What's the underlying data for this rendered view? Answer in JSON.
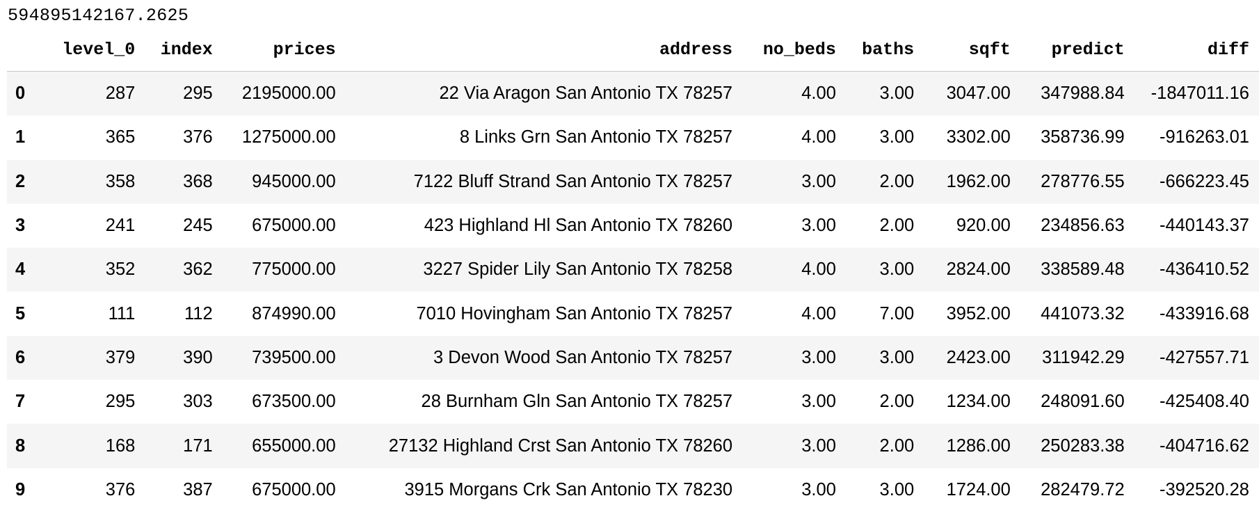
{
  "output_value": "594895142167.2625",
  "table": {
    "columns": [
      "",
      "level_0",
      "index",
      "prices",
      "address",
      "no_beds",
      "baths",
      "sqft",
      "predict",
      "diff"
    ],
    "rows": [
      [
        "0",
        "287",
        "295",
        "2195000.00",
        "22 Via Aragon San Antonio TX 78257",
        "4.00",
        "3.00",
        "3047.00",
        "347988.84",
        "-1847011.16"
      ],
      [
        "1",
        "365",
        "376",
        "1275000.00",
        "8 Links Grn San Antonio TX 78257",
        "4.00",
        "3.00",
        "3302.00",
        "358736.99",
        "-916263.01"
      ],
      [
        "2",
        "358",
        "368",
        "945000.00",
        "7122 Bluff Strand San Antonio TX 78257",
        "3.00",
        "2.00",
        "1962.00",
        "278776.55",
        "-666223.45"
      ],
      [
        "3",
        "241",
        "245",
        "675000.00",
        "423 Highland Hl San Antonio TX 78260",
        "3.00",
        "2.00",
        "920.00",
        "234856.63",
        "-440143.37"
      ],
      [
        "4",
        "352",
        "362",
        "775000.00",
        "3227 Spider Lily San Antonio TX 78258",
        "4.00",
        "3.00",
        "2824.00",
        "338589.48",
        "-436410.52"
      ],
      [
        "5",
        "111",
        "112",
        "874990.00",
        "7010 Hovingham San Antonio TX 78257",
        "4.00",
        "7.00",
        "3952.00",
        "441073.32",
        "-433916.68"
      ],
      [
        "6",
        "379",
        "390",
        "739500.00",
        "3 Devon Wood San Antonio TX 78257",
        "3.00",
        "3.00",
        "2423.00",
        "311942.29",
        "-427557.71"
      ],
      [
        "7",
        "295",
        "303",
        "673500.00",
        "28 Burnham Gln San Antonio TX 78257",
        "3.00",
        "2.00",
        "1234.00",
        "248091.60",
        "-425408.40"
      ],
      [
        "8",
        "168",
        "171",
        "655000.00",
        "27132 Highland Crst San Antonio TX 78260",
        "3.00",
        "2.00",
        "1286.00",
        "250283.38",
        "-404716.62"
      ],
      [
        "9",
        "376",
        "387",
        "675000.00",
        "3915 Morgans Crk San Antonio TX 78230",
        "3.00",
        "3.00",
        "1724.00",
        "282479.72",
        "-392520.28"
      ]
    ]
  }
}
